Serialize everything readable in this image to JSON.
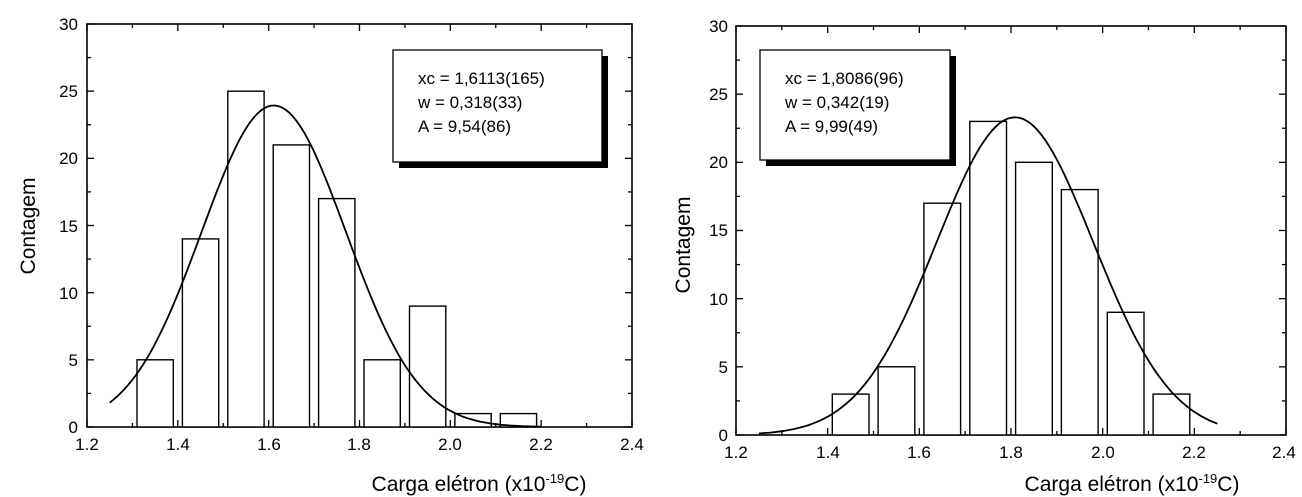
{
  "chart_data": [
    {
      "type": "bar",
      "xlabel": "Carga elétron (x10",
      "xlabel_exp": "-19",
      "xlabel_unit": "C)",
      "ylabel": "Contagem",
      "xlim": [
        1.2,
        2.4
      ],
      "ylim": [
        0,
        30
      ],
      "xticks": [
        "1.2",
        "1.4",
        "1.6",
        "1.8",
        "2.0",
        "2.2",
        "2.4"
      ],
      "yticks": [
        "0",
        "5",
        "10",
        "15",
        "20",
        "25",
        "30"
      ],
      "bin_width": 0.08,
      "bars": [
        {
          "x": 1.35,
          "value": 5
        },
        {
          "x": 1.45,
          "value": 14
        },
        {
          "x": 1.55,
          "value": 25
        },
        {
          "x": 1.65,
          "value": 21
        },
        {
          "x": 1.75,
          "value": 17
        },
        {
          "x": 1.85,
          "value": 5
        },
        {
          "x": 1.95,
          "value": 9
        },
        {
          "x": 2.05,
          "value": 1
        },
        {
          "x": 2.15,
          "value": 1
        }
      ],
      "fit": {
        "type": "gaussian",
        "xc": 1.6113,
        "w": 0.318,
        "A": 9.54,
        "x_range": [
          1.25,
          2.2
        ]
      },
      "legend_lines": [
        "xc = 1,6113(165)",
        "w = 0,318(33)",
        "A = 9,54(86)"
      ],
      "legend_position": "top-right"
    },
    {
      "type": "bar",
      "xlabel": "Carga elétron (x10",
      "xlabel_exp": "-19",
      "xlabel_unit": "C)",
      "ylabel": "Contagem",
      "xlim": [
        1.2,
        2.4
      ],
      "ylim": [
        0,
        30
      ],
      "xticks": [
        "1.2",
        "1.4",
        "1.6",
        "1.8",
        "2.0",
        "2.2",
        "2.4"
      ],
      "yticks": [
        "0",
        "5",
        "10",
        "15",
        "20",
        "25",
        "30"
      ],
      "bin_width": 0.08,
      "bars": [
        {
          "x": 1.45,
          "value": 3
        },
        {
          "x": 1.55,
          "value": 5
        },
        {
          "x": 1.65,
          "value": 17
        },
        {
          "x": 1.75,
          "value": 23
        },
        {
          "x": 1.85,
          "value": 20
        },
        {
          "x": 1.95,
          "value": 18
        },
        {
          "x": 2.05,
          "value": 9
        },
        {
          "x": 2.15,
          "value": 3
        }
      ],
      "fit": {
        "type": "gaussian",
        "xc": 1.8086,
        "w": 0.342,
        "A": 9.99,
        "x_range": [
          1.25,
          2.25
        ]
      },
      "legend_lines": [
        "xc = 1,8086(96)",
        "w = 0,342(19)",
        "A = 9,99(49)"
      ],
      "legend_position": "top-left"
    }
  ]
}
